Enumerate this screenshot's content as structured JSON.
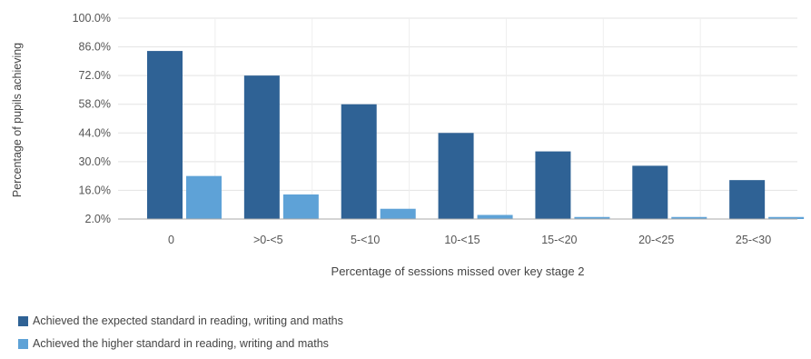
{
  "chart_data": {
    "type": "bar",
    "xlabel": "Percentage of sessions missed over key stage 2",
    "ylabel": "Percentage of pupils achieving",
    "categories": [
      "0",
      ">0-<5",
      "5-<10",
      "10-<15",
      "15-<20",
      "20-<25",
      "25-<30"
    ],
    "yticks": [
      "2.0%",
      "16.0%",
      "30.0%",
      "44.0%",
      "58.0%",
      "72.0%",
      "86.0%",
      "100.0%"
    ],
    "ylim": [
      2,
      100
    ],
    "grid": true,
    "legend_position": "bottom-left",
    "series": [
      {
        "name": "Achieved the expected standard in reading, writing and maths",
        "color": "#2f6295",
        "values": [
          84,
          72,
          58,
          44,
          35,
          28,
          21
        ]
      },
      {
        "name": "Achieved the higher standard in reading, writing and maths",
        "color": "#5ea2d7",
        "values": [
          23,
          14,
          7,
          4,
          3,
          3,
          3
        ]
      }
    ]
  }
}
